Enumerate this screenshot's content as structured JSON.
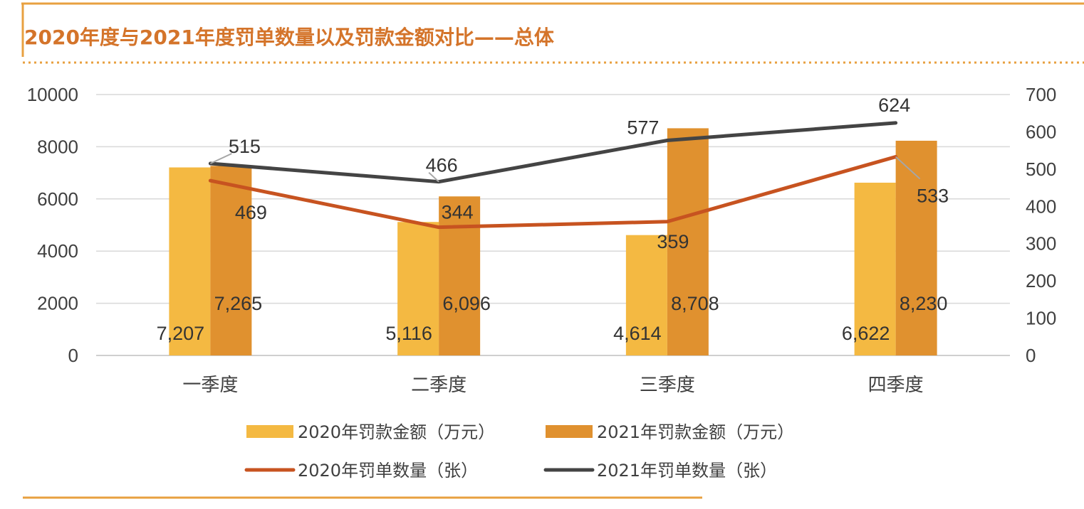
{
  "chart_data": {
    "type": "bar",
    "title": "2020年度与2021年度罚单数量以及罚款金额对比——总体",
    "categories": [
      "一季度",
      "二季度",
      "三季度",
      "四季度"
    ],
    "left_axis": {
      "ylim": [
        0,
        10000
      ],
      "ticks": [
        0,
        2000,
        4000,
        6000,
        8000,
        10000
      ],
      "tick_labels": [
        "0",
        "2000",
        "4000",
        "6000",
        "8000",
        "10000"
      ]
    },
    "right_axis": {
      "ylim": [
        0,
        700
      ],
      "ticks": [
        0,
        100,
        200,
        300,
        400,
        500,
        600,
        700
      ],
      "tick_labels": [
        "0",
        "100",
        "200",
        "300",
        "400",
        "500",
        "600",
        "700"
      ]
    },
    "bar_series": [
      {
        "name": "2020年罚款金额（万元）",
        "axis": "left",
        "color": "#f4b942",
        "values": [
          7207,
          5116,
          4614,
          6622
        ],
        "labels": [
          "7,207",
          "5,116",
          "4,614",
          "6,622"
        ]
      },
      {
        "name": "2021年罚款金额（万元）",
        "axis": "left",
        "color": "#e0912f",
        "values": [
          7265,
          6096,
          8708,
          8230
        ],
        "labels": [
          "7,265",
          "6,096",
          "8,708",
          "8,230"
        ]
      }
    ],
    "line_series": [
      {
        "name": "2020年罚单数量（张）",
        "axis": "right",
        "color": "#c75320",
        "values": [
          469,
          344,
          359,
          533
        ],
        "labels": [
          "469",
          "344",
          "359",
          "533"
        ]
      },
      {
        "name": "2021年罚单数量（张）",
        "axis": "right",
        "color": "#444444",
        "values": [
          515,
          466,
          577,
          624
        ],
        "labels": [
          "515",
          "466",
          "577",
          "624"
        ]
      }
    ],
    "legend": [
      "2020年罚款金额（万元）",
      "2021年罚款金额（万元）",
      "2020年罚单数量（张）",
      "2021年罚单数量（张）"
    ],
    "legend_position": "bottom",
    "grid": true
  },
  "colors": {
    "title": "#d4742a",
    "frame": "#e8a040",
    "grid": "#d9d9d9"
  }
}
